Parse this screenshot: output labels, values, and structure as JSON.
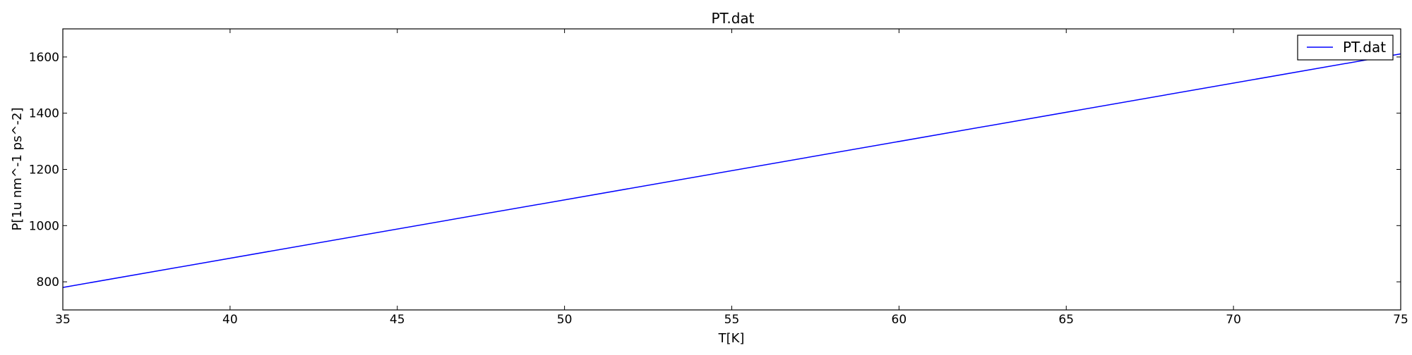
{
  "chart_data": {
    "type": "line",
    "title": "PT.dat",
    "xlabel": "T[K]",
    "ylabel": "P[1u nm^-1 ps^-2]",
    "xlim": [
      35,
      75
    ],
    "ylim": [
      700,
      1700
    ],
    "xticks": [
      35,
      40,
      45,
      50,
      55,
      60,
      65,
      70,
      75
    ],
    "yticks": [
      800,
      1000,
      1200,
      1400,
      1600
    ],
    "grid": false,
    "legend_position": "top-right",
    "series": [
      {
        "name": "PT.dat",
        "color": "#0000ff",
        "x": [
          35,
          75
        ],
        "y": [
          780,
          1611
        ]
      }
    ]
  }
}
